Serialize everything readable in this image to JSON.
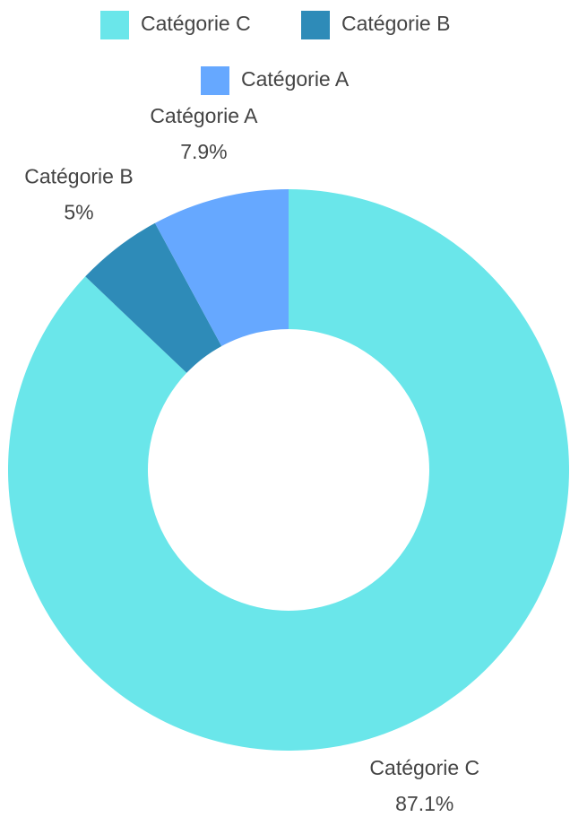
{
  "chart_data": {
    "type": "donut",
    "categories": [
      "Catégorie C",
      "Catégorie B",
      "Catégorie A"
    ],
    "values": [
      87.1,
      5,
      7.9
    ],
    "value_labels": [
      "87.1%",
      "5%",
      "7.9%"
    ],
    "colors": [
      "#6ae6ea",
      "#2e8bb8",
      "#66a8ff"
    ],
    "legend": "top"
  }
}
